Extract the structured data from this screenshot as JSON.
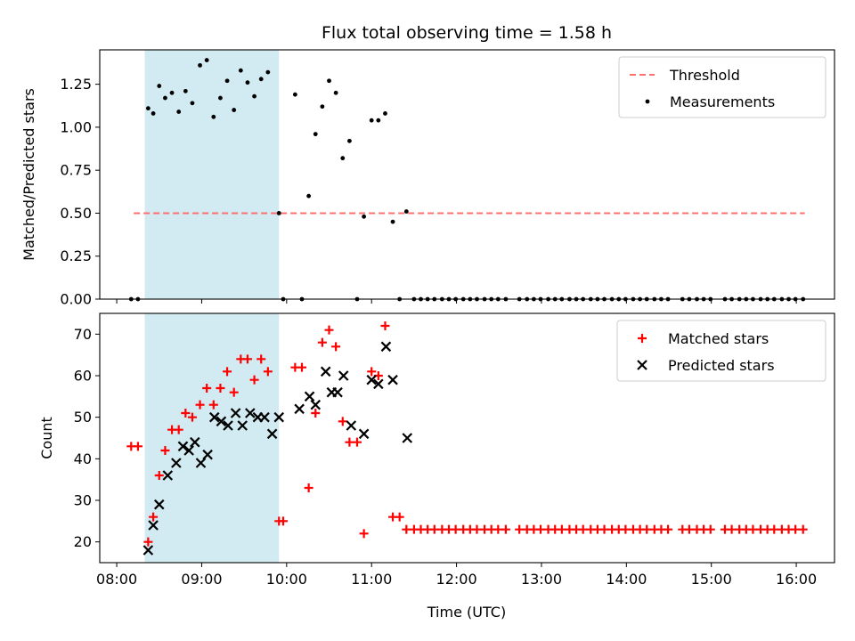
{
  "chart_data": {
    "type": "scatter",
    "title": "Flux total observing time = 1.58 h",
    "xlabel": "Time (UTC)",
    "xlim": [
      7.8,
      16.45
    ],
    "x_ticks": [
      8,
      9,
      10,
      11,
      12,
      13,
      14,
      15,
      16
    ],
    "x_tick_labels": [
      "08:00",
      "09:00",
      "10:00",
      "11:00",
      "12:00",
      "13:00",
      "14:00",
      "15:00",
      "16:00"
    ],
    "shaded_interval": [
      8.33,
      9.91
    ],
    "shade_color": "#add8e6",
    "subplots": [
      {
        "ylabel": "Matched/Predicted stars",
        "ylim": [
          0,
          1.45
        ],
        "y_ticks": [
          0,
          0.25,
          0.5,
          0.75,
          1.0,
          1.25
        ],
        "y_tick_labels": [
          "0.00",
          "0.25",
          "0.50",
          "0.75",
          "1.00",
          "1.25"
        ],
        "threshold": {
          "name": "Threshold",
          "y": 0.5,
          "x_range": [
            8.2,
            16.1
          ],
          "color": "#ff7070"
        },
        "series": [
          {
            "name": "Measurements",
            "marker": "dot",
            "color": "#000000",
            "x": [
              8.17,
              8.25,
              8.37,
              8.43,
              8.5,
              8.57,
              8.65,
              8.73,
              8.81,
              8.89,
              8.98,
              9.06,
              9.14,
              9.22,
              9.3,
              9.38,
              9.46,
              9.54,
              9.62,
              9.7,
              9.78,
              9.91,
              9.96,
              10.1,
              10.18,
              10.26,
              10.34,
              10.42,
              10.5,
              10.58,
              10.66,
              10.74,
              10.83,
              10.91,
              11.0,
              11.08,
              11.16,
              11.25,
              11.33,
              11.41,
              11.5,
              11.58,
              11.66,
              11.74,
              11.83,
              11.91,
              11.99,
              12.08,
              12.16,
              12.24,
              12.33,
              12.41,
              12.49,
              12.58,
              12.74,
              12.83,
              12.91,
              12.99,
              13.08,
              13.16,
              13.24,
              13.33,
              13.41,
              13.49,
              13.58,
              13.66,
              13.74,
              13.83,
              13.91,
              13.99,
              14.08,
              14.16,
              14.24,
              14.33,
              14.41,
              14.49,
              14.66,
              14.74,
              14.83,
              14.91,
              14.99,
              15.16,
              15.24,
              15.33,
              15.41,
              15.49,
              15.58,
              15.66,
              15.74,
              15.83,
              15.91,
              15.99,
              16.08
            ],
            "y": [
              0,
              0,
              1.11,
              1.08,
              1.24,
              1.17,
              1.2,
              1.09,
              1.21,
              1.14,
              1.36,
              1.39,
              1.06,
              1.17,
              1.27,
              1.1,
              1.33,
              1.26,
              1.18,
              1.28,
              1.32,
              0.5,
              0,
              1.19,
              0,
              0.6,
              0.96,
              1.12,
              1.27,
              1.2,
              0.82,
              0.92,
              0,
              0.48,
              1.04,
              1.04,
              1.08,
              0.45,
              0,
              0.51,
              0,
              0,
              0,
              0,
              0,
              0,
              0,
              0,
              0,
              0,
              0,
              0,
              0,
              0,
              0,
              0,
              0,
              0,
              0,
              0,
              0,
              0,
              0,
              0,
              0,
              0,
              0,
              0,
              0,
              0,
              0,
              0,
              0,
              0,
              0,
              0,
              0,
              0,
              0,
              0,
              0,
              0,
              0,
              0,
              0,
              0,
              0,
              0,
              0,
              0,
              0,
              0,
              0
            ]
          }
        ],
        "legend": [
          "Threshold",
          "Measurements"
        ],
        "legend_loc": "upper right"
      },
      {
        "ylabel": "Count",
        "ylim": [
          15,
          75
        ],
        "y_ticks": [
          20,
          30,
          40,
          50,
          60,
          70
        ],
        "y_tick_labels": [
          "20",
          "30",
          "40",
          "50",
          "60",
          "70"
        ],
        "series": [
          {
            "name": "Matched stars",
            "marker": "plus",
            "color": "#ff0000",
            "x": [
              8.17,
              8.25,
              8.37,
              8.43,
              8.5,
              8.57,
              8.65,
              8.73,
              8.81,
              8.89,
              8.98,
              9.06,
              9.14,
              9.22,
              9.3,
              9.38,
              9.46,
              9.54,
              9.62,
              9.7,
              9.78,
              9.91,
              9.96,
              10.1,
              10.18,
              10.26,
              10.34,
              10.42,
              10.5,
              10.58,
              10.66,
              10.74,
              10.83,
              10.91,
              11.0,
              11.08,
              11.16,
              11.25,
              11.33,
              11.41,
              11.5,
              11.58,
              11.66,
              11.74,
              11.83,
              11.91,
              11.99,
              12.08,
              12.16,
              12.24,
              12.33,
              12.41,
              12.49,
              12.58,
              12.74,
              12.83,
              12.91,
              12.99,
              13.08,
              13.16,
              13.24,
              13.33,
              13.41,
              13.49,
              13.58,
              13.66,
              13.74,
              13.83,
              13.91,
              13.99,
              14.08,
              14.16,
              14.24,
              14.33,
              14.41,
              14.49,
              14.66,
              14.74,
              14.83,
              14.91,
              14.99,
              15.16,
              15.24,
              15.33,
              15.41,
              15.49,
              15.58,
              15.66,
              15.74,
              15.83,
              15.91,
              15.99,
              16.08
            ],
            "y": [
              43,
              43,
              20,
              26,
              36,
              42,
              47,
              47,
              51,
              50,
              53,
              57,
              53,
              57,
              61,
              56,
              64,
              64,
              59,
              64,
              61,
              25,
              25,
              62,
              62,
              33,
              51,
              68,
              71,
              67,
              49,
              44,
              44,
              22,
              61,
              60,
              72,
              26,
              26,
              23,
              23,
              23,
              23,
              23,
              23,
              23,
              23,
              23,
              23,
              23,
              23,
              23,
              23,
              23,
              23,
              23,
              23,
              23,
              23,
              23,
              23,
              23,
              23,
              23,
              23,
              23,
              23,
              23,
              23,
              23,
              23,
              23,
              23,
              23,
              23,
              23,
              23,
              23,
              23,
              23,
              23,
              23,
              23,
              23,
              23,
              23,
              23,
              23,
              23,
              23,
              23,
              23,
              23
            ]
          },
          {
            "name": "Predicted stars",
            "marker": "x",
            "color": "#000000",
            "x": [
              8.37,
              8.43,
              8.5,
              8.6,
              8.7,
              8.78,
              8.85,
              8.92,
              8.99,
              9.07,
              9.15,
              9.23,
              9.31,
              9.4,
              9.48,
              9.57,
              9.66,
              9.74,
              9.83,
              9.91,
              10.15,
              10.27,
              10.34,
              10.46,
              10.53,
              10.6,
              10.67,
              10.76,
              10.91,
              11.0,
              11.08,
              11.17,
              11.25,
              11.42
            ],
            "y": [
              18,
              24,
              29,
              36,
              39,
              43,
              42,
              44,
              39,
              41,
              50,
              49,
              48,
              51,
              48,
              51,
              50,
              50,
              46,
              50,
              52,
              55,
              53,
              61,
              56,
              56,
              60,
              48,
              46,
              59,
              58,
              67,
              59,
              45
            ]
          }
        ],
        "legend": [
          "Matched stars",
          "Predicted stars"
        ],
        "legend_loc": "upper right"
      }
    ]
  }
}
